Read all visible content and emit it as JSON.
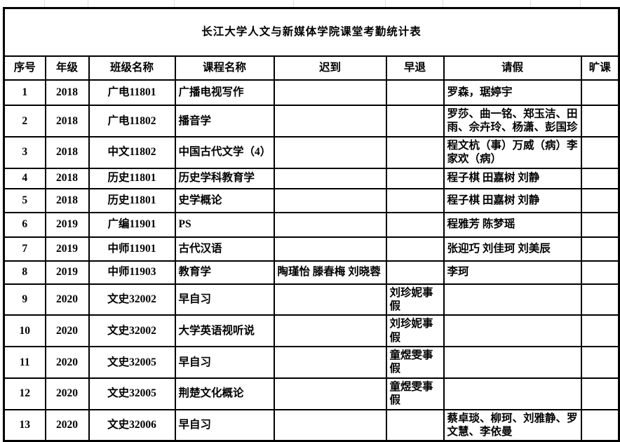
{
  "title": "长江大学人文与新媒体学院课堂考勤统计表",
  "columns": [
    "序号",
    "年级",
    "班级名称",
    "课程名称",
    "迟到",
    "早退",
    "请假",
    "旷课"
  ],
  "rows": [
    {
      "no": "1",
      "grade": "2018",
      "class": "广电11801",
      "course": "广播电视写作",
      "late": "",
      "early": "",
      "leave": "罗森，琚婷宇",
      "absent": ""
    },
    {
      "no": "2",
      "grade": "2018",
      "class": "广电11802",
      "course": "播音学",
      "late": "",
      "early": "",
      "leave": "罗莎、曲一铭、郑玉洁、田雨、佘卉玲、杨潇、彭国珍",
      "absent": ""
    },
    {
      "no": "3",
      "grade": "2018",
      "class": "中文11802",
      "course": "中国古代文学（4）",
      "late": "",
      "early": "",
      "leave": "程文杭（事）万威（病）李家欢（病）",
      "absent": ""
    },
    {
      "no": "4",
      "grade": "2018",
      "class": "历史11801",
      "course": "历史学科教育学",
      "late": "",
      "early": "",
      "leave": "程子棋 田嘉树 刘静",
      "absent": ""
    },
    {
      "no": "5",
      "grade": "2018",
      "class": "历史11801",
      "course": "史学概论",
      "late": "",
      "early": "",
      "leave": "程子棋 田嘉树 刘静",
      "absent": ""
    },
    {
      "no": "6",
      "grade": "2019",
      "class": "广编11901",
      "course": "PS",
      "late": "",
      "early": "",
      "leave": "程雅芳 陈梦瑶",
      "absent": ""
    },
    {
      "no": "7",
      "grade": "2019",
      "class": "中师11901",
      "course": "古代汉语",
      "late": "",
      "early": "",
      "leave": "张迎巧 刘佳珂 刘美辰",
      "absent": ""
    },
    {
      "no": "8",
      "grade": "2019",
      "class": "中师11903",
      "course": "教育学",
      "late": "陶瑾怡 滕春梅 刘晓蓉",
      "early": "",
      "leave": "李珂",
      "absent": ""
    },
    {
      "no": "9",
      "grade": "2020",
      "class": "文史32002",
      "course": "早自习",
      "late": "",
      "early": "刘珍妮事假",
      "leave": "",
      "absent": ""
    },
    {
      "no": "10",
      "grade": "2020",
      "class": "文史32002",
      "course": "大学英语视听说",
      "late": "",
      "early": "刘珍妮事假",
      "leave": "",
      "absent": ""
    },
    {
      "no": "11",
      "grade": "2020",
      "class": "文史32005",
      "course": "早自习",
      "late": "",
      "early": "童煜雯事假",
      "leave": "",
      "absent": ""
    },
    {
      "no": "12",
      "grade": "2020",
      "class": "文史32005",
      "course": "荆楚文化概论",
      "late": "",
      "early": "童煜雯事假",
      "leave": "",
      "absent": ""
    },
    {
      "no": "13",
      "grade": "2020",
      "class": "文史32006",
      "course": "早自习",
      "late": "",
      "early": "",
      "leave": "蔡卓琰、柳珂、刘雅静、罗文慧、李依曼",
      "absent": ""
    }
  ],
  "colors": {
    "table_border": "#000000",
    "sheet_gridline": "#d9dfe9",
    "background": "#ffffff",
    "text": "#000000"
  }
}
